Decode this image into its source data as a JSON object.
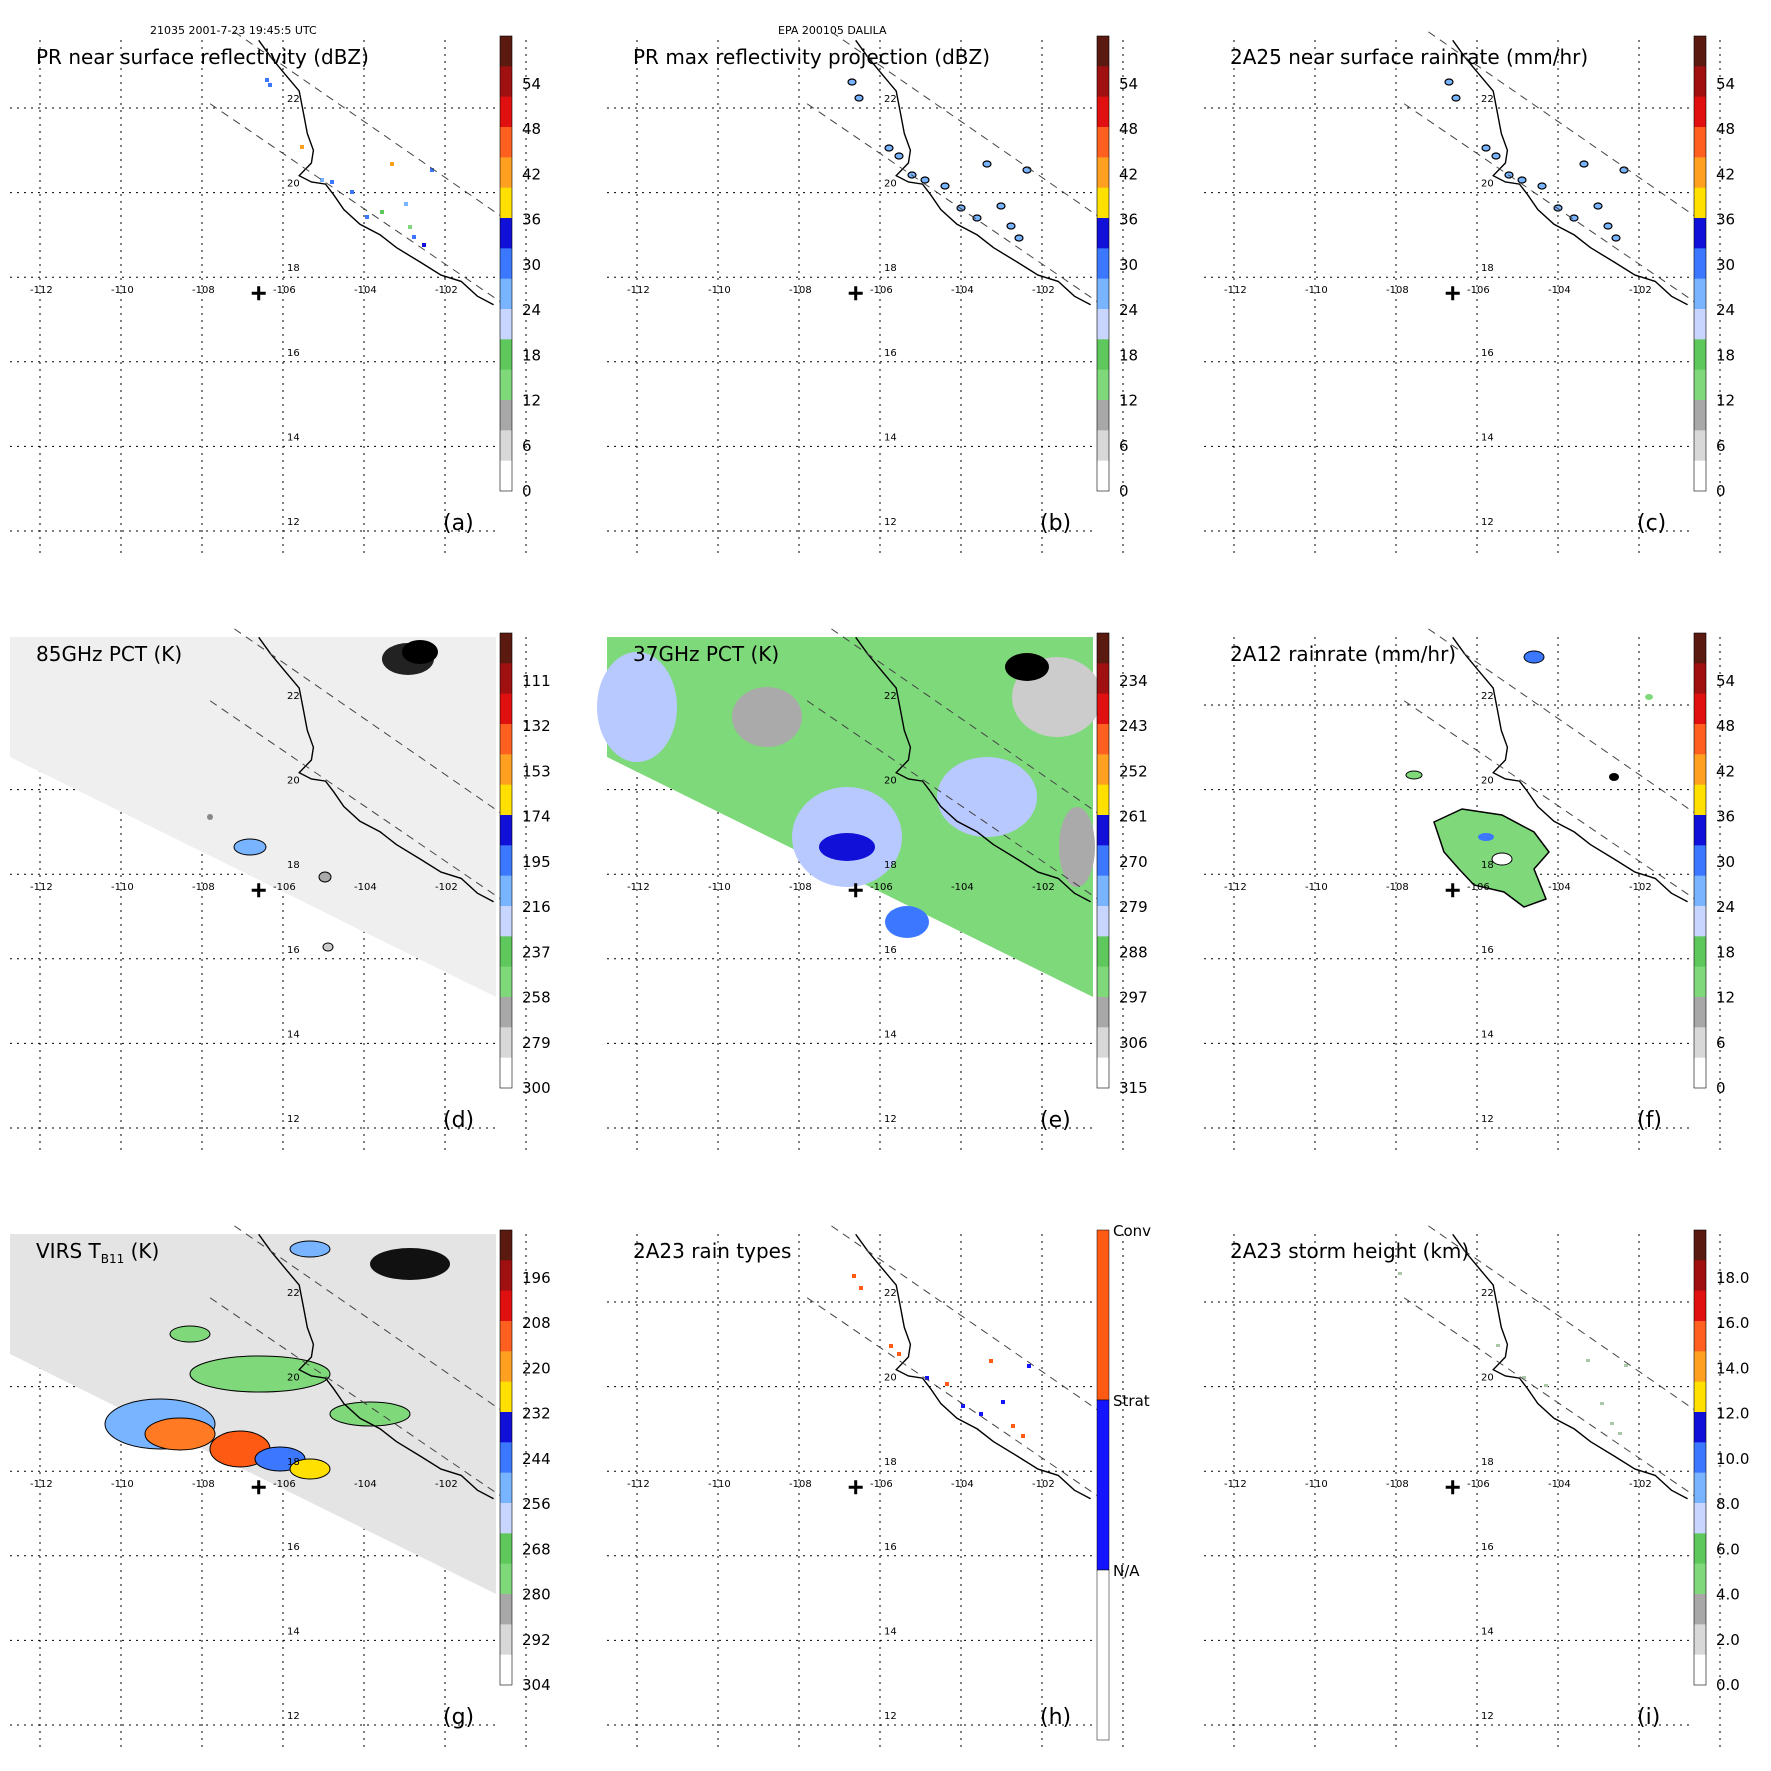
{
  "header": {
    "orbit_time": "21035 2001-7-23 19:45:5 UTC",
    "storm": "EPA 200105 DALILA"
  },
  "axes": {
    "lon_labels": [
      "-112",
      "-110",
      "-108",
      "-106",
      "-104",
      "-102"
    ],
    "lat_labels": [
      "22",
      "20",
      "18",
      "16",
      "14",
      "12"
    ]
  },
  "panels": [
    {
      "title": "PR near surface reflectivity (dBZ)",
      "label": "(a)",
      "scale": "dbz",
      "field": "pr_sparse"
    },
    {
      "title": "PR max reflectivity projection (dBZ)",
      "label": "(b)",
      "scale": "dbz",
      "field": "pr_contour"
    },
    {
      "title": "2A25 near surface rainrate (mm/hr)",
      "label": "(c)",
      "scale": "rain",
      "field": "pr_contour"
    },
    {
      "title": "85GHz PCT (K)",
      "label": "(d)",
      "scale": "pct85",
      "field": "pct85"
    },
    {
      "title": "37GHz PCT (K)",
      "label": "(e)",
      "scale": "pct37",
      "field": "pct37"
    },
    {
      "title": "2A12 rainrate (mm/hr)",
      "label": "(f)",
      "scale": "rain",
      "field": "tmi_rain"
    },
    {
      "title": "VIRS T",
      "title_sub": "B11",
      "title_after": " (K)",
      "label": "(g)",
      "scale": "virs",
      "field": "virs"
    },
    {
      "title": "2A23 rain types",
      "label": "(h)",
      "scale": "types",
      "field": "types"
    },
    {
      "title": "2A23 storm height (km)",
      "label": "(i)",
      "scale": "height",
      "field": "height"
    }
  ],
  "colorbars": {
    "dbz": {
      "ticks": [
        "54",
        "48",
        "42",
        "36",
        "30",
        "24",
        "18",
        "12",
        "6",
        "0"
      ]
    },
    "rain": {
      "ticks": [
        "54",
        "48",
        "42",
        "36",
        "30",
        "24",
        "18",
        "12",
        "6",
        "0"
      ]
    },
    "pct85": {
      "ticks": [
        "111",
        "132",
        "153",
        "174",
        "195",
        "216",
        "237",
        "258",
        "279",
        "300"
      ]
    },
    "pct37": {
      "ticks": [
        "234",
        "243",
        "252",
        "261",
        "270",
        "279",
        "288",
        "297",
        "306",
        "315"
      ]
    },
    "virs": {
      "ticks": [
        "196",
        "208",
        "220",
        "232",
        "244",
        "256",
        "268",
        "280",
        "292",
        "304"
      ]
    },
    "height": {
      "ticks": [
        "18.0",
        "16.0",
        "14.0",
        "12.0",
        "10.0",
        "8.0",
        "6.0",
        "4.0",
        "2.0",
        "0.0"
      ]
    },
    "types": {
      "labels": [
        "Conv",
        "Strat",
        "N/A"
      ]
    }
  },
  "colors": {
    "palette": [
      "#ffffff",
      "#d8d8d8",
      "#a8a8a8",
      "#7fd97a",
      "#5fc85c",
      "#c8d6ff",
      "#78b4ff",
      "#3c78ff",
      "#1010d8",
      "#ffe000",
      "#ffa020",
      "#ff6020",
      "#e01010",
      "#a01010",
      "#5a1a10"
    ],
    "pct_gray": "#d9d9d9",
    "pct37_green": "#7ed97b",
    "pct37_blue": "#b8c9ff",
    "virs_orange": "#ff7a22",
    "conv": "#ff5a14",
    "strat": "#1414ff"
  }
}
